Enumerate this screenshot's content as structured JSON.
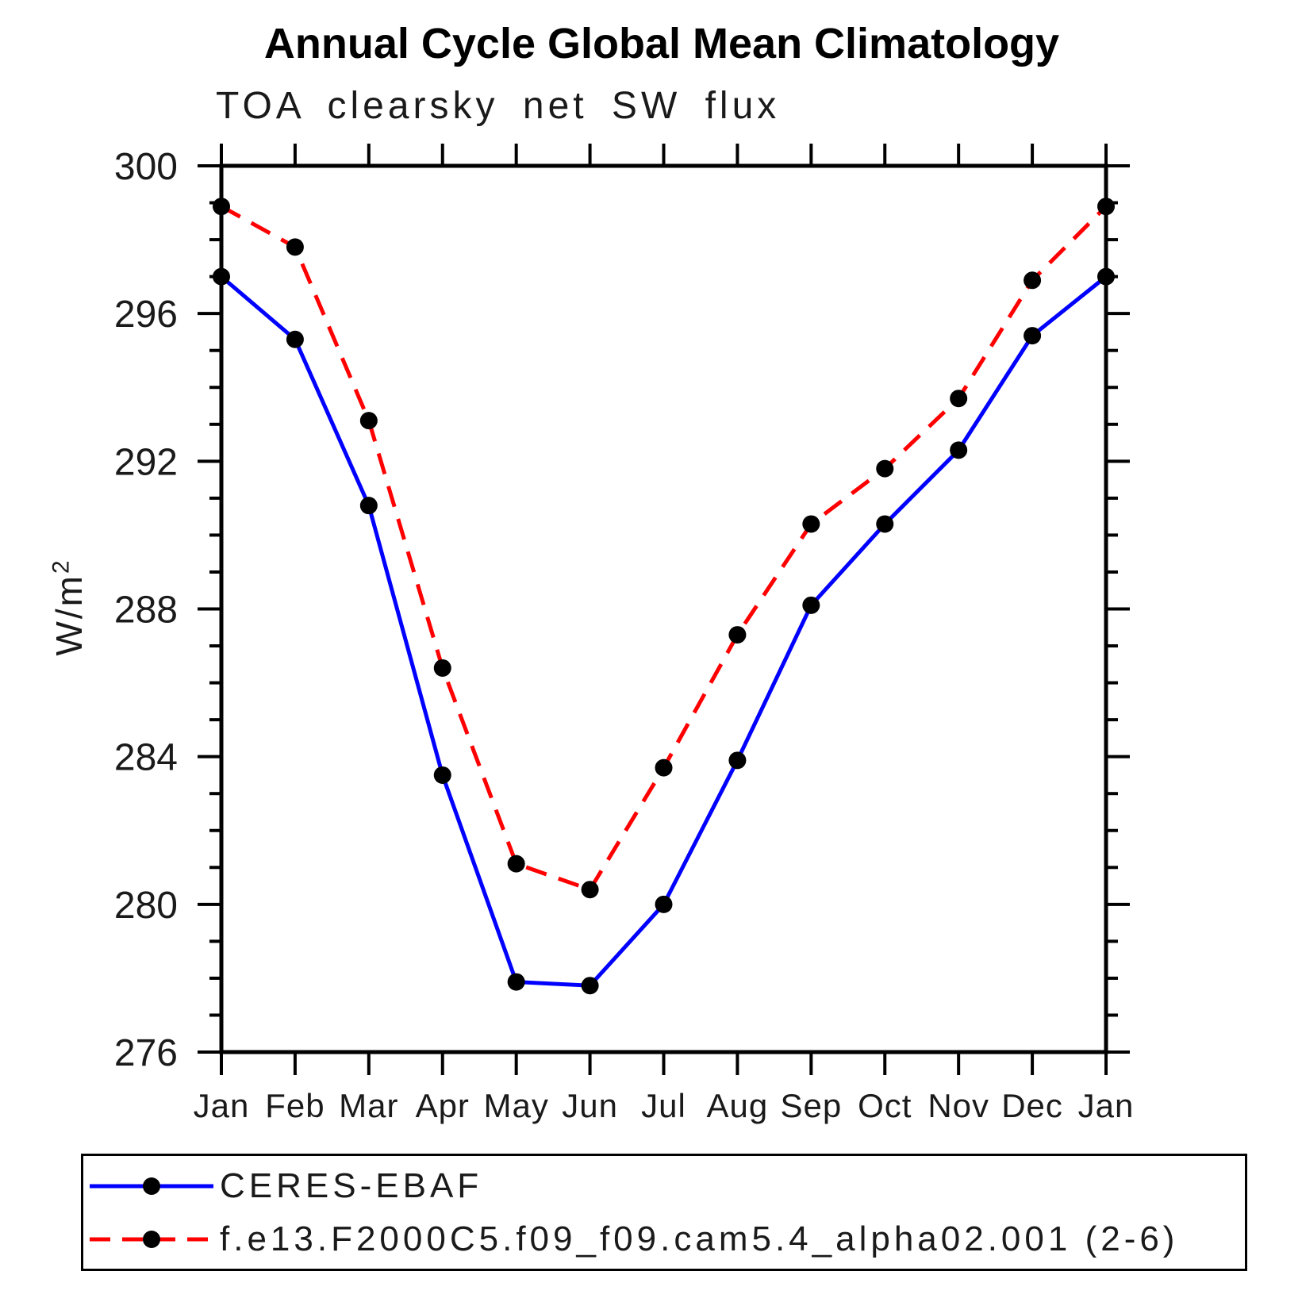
{
  "page": {
    "background": "#ffffff"
  },
  "header": {
    "title": "Annual Cycle Global Mean Climatology",
    "subtitle": "TOA clearsky net SW flux"
  },
  "y_axis": {
    "label_base": "W/m",
    "label_sup": "2"
  },
  "legend": {
    "items": [
      {
        "label": "CERES-EBAF",
        "color": "#0000ff",
        "line_style": "solid",
        "marker": "filled-circle",
        "marker_color": "#000000"
      },
      {
        "label": "f.e13.F2000C5.f09_f09.cam5.4_alpha02.001 (2-6)",
        "color": "#ff0000",
        "line_style": "dashed",
        "marker": "filled-circle",
        "marker_color": "#000000"
      }
    ]
  },
  "chart_data": {
    "type": "line",
    "title": "Annual Cycle Global Mean Climatology",
    "subtitle": "TOA clearsky net SW flux",
    "xlabel": "",
    "ylabel": "W/m²",
    "categories": [
      "Jan",
      "Feb",
      "Mar",
      "Apr",
      "May",
      "Jun",
      "Jul",
      "Aug",
      "Sep",
      "Oct",
      "Nov",
      "Dec",
      "Jan"
    ],
    "ylim": [
      276,
      300
    ],
    "y_major_ticks": [
      276,
      280,
      284,
      288,
      292,
      296,
      300
    ],
    "y_minor_step": 1,
    "grid": false,
    "legend_position": "bottom-left-box",
    "axis_color": "#000000",
    "series": [
      {
        "name": "CERES-EBAF",
        "color": "#0000ff",
        "line_style": "solid",
        "marker": "filled-circle",
        "marker_color": "#000000",
        "values": [
          297.0,
          295.3,
          290.8,
          283.5,
          277.9,
          277.8,
          280.0,
          283.9,
          288.1,
          290.3,
          292.3,
          295.4,
          297.0
        ]
      },
      {
        "name": "f.e13.F2000C5.f09_f09.cam5.4_alpha02.001 (2-6)",
        "color": "#ff0000",
        "line_style": "dashed",
        "marker": "filled-circle",
        "marker_color": "#000000",
        "values": [
          298.9,
          297.8,
          293.1,
          286.4,
          281.1,
          280.4,
          283.7,
          287.3,
          290.3,
          291.8,
          293.7,
          296.9,
          298.9
        ]
      }
    ]
  }
}
